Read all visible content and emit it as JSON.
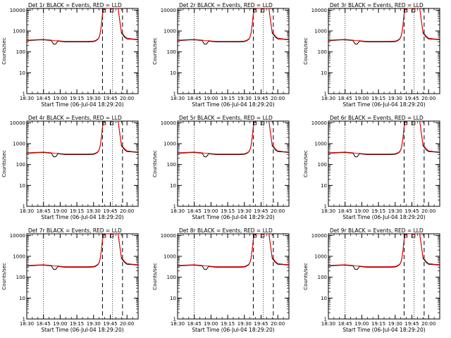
{
  "chart_data": {
    "type": "line",
    "x_label": "Start Time (06-Jul-04 18:29:20)",
    "y_label": "Counts/sec",
    "x_ticks": [
      "18:30",
      "18:45",
      "19:00",
      "19:15",
      "19:30",
      "19:45",
      "20:00"
    ],
    "y_ticks": [
      "1",
      "10",
      "100",
      "1000",
      "10000"
    ],
    "y_scale": "log",
    "y_range": [
      1,
      12000
    ],
    "x_range_minutes_after_18_30": [
      0,
      100
    ],
    "line_colors": {
      "events": "#000000",
      "lld": "#ff0000"
    },
    "panels": [
      {
        "title": "Det 1r BLACK = Events, RED = LLD"
      },
      {
        "title": "Det 2r BLACK = Events, RED = LLD"
      },
      {
        "title": "Det 3r BLACK = Events, RED = LLD"
      },
      {
        "title": "Det 4r BLACK = Events, RED = LLD"
      },
      {
        "title": "Det 5r BLACK = Events, RED = LLD"
      },
      {
        "title": "Det 6r BLACK = Events, RED = LLD"
      },
      {
        "title": "Det 7r BLACK = Events, RED = LLD"
      },
      {
        "title": "Det 8r BLACK = Events, RED = LLD"
      },
      {
        "title": "Det 9r BLACK = Events, RED = LLD"
      }
    ],
    "dotted_lines_minutes": [
      15,
      77
    ],
    "dashed_lines_minutes": [
      68,
      86
    ],
    "series": [
      {
        "name": "Events",
        "x_minutes": [
          0,
          5,
          10,
          15,
          20,
          22,
          24,
          25,
          26,
          28,
          30,
          35,
          40,
          45,
          50,
          55,
          60,
          62,
          64,
          65,
          66,
          67,
          68,
          69,
          70,
          71,
          72,
          74,
          75,
          76,
          77,
          78,
          80,
          82,
          85,
          88,
          90,
          95,
          100
        ],
        "y": [
          340,
          360,
          370,
          380,
          360,
          350,
          240,
          230,
          240,
          330,
          320,
          300,
          300,
          300,
          300,
          300,
          310,
          340,
          400,
          500,
          800,
          2000,
          6000,
          12000,
          12000,
          12000,
          12000,
          12000,
          12000,
          12000,
          12000,
          12000,
          12000,
          12000,
          800,
          500,
          420,
          400,
          380
        ]
      },
      {
        "name": "LLD",
        "x_minutes": [
          0,
          5,
          10,
          15,
          20,
          22,
          24,
          25,
          26,
          28,
          30,
          35,
          40,
          45,
          50,
          55,
          60,
          62,
          64,
          65,
          66,
          67,
          68,
          69,
          70,
          71,
          72,
          74,
          75,
          76,
          77,
          78,
          80,
          82,
          85,
          88,
          90,
          95,
          100
        ],
        "y": [
          360,
          375,
          385,
          395,
          375,
          365,
          350,
          345,
          345,
          345,
          335,
          320,
          320,
          320,
          320,
          320,
          330,
          360,
          420,
          520,
          850,
          2100,
          6200,
          12000,
          12000,
          12000,
          12000,
          12000,
          12000,
          12000,
          12000,
          12000,
          12000,
          12000,
          900,
          560,
          450,
          420,
          400
        ]
      }
    ]
  }
}
